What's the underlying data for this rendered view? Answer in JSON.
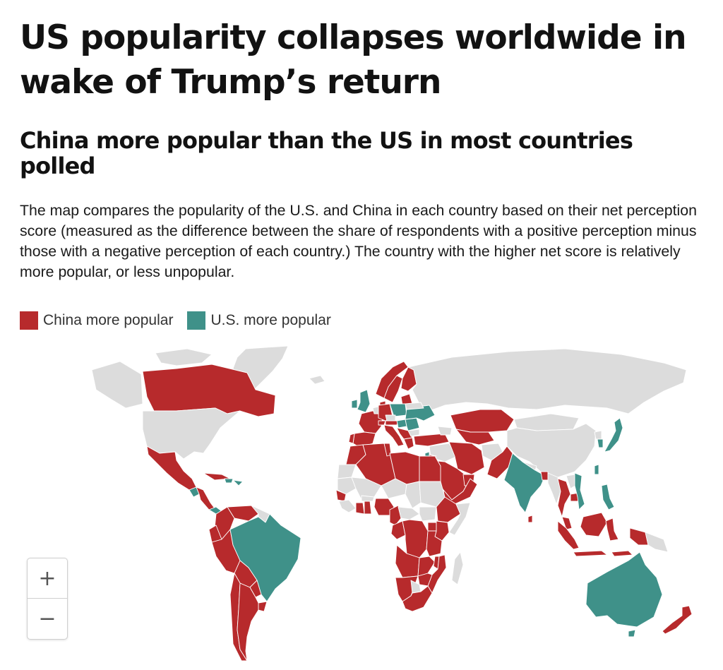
{
  "headline": "US popularity collapses worldwide in wake of Trump’s return",
  "subhead": "China more popular than the US in most countries polled",
  "description": "The map compares the popularity of the U.S. and China in each country based on their net perception score (measured as the difference between the share of respondents with a positive perception minus those with a negative perception of each country.) The country with the higher net score is relatively more popular, or less unpopular.",
  "legend": [
    {
      "label": "China more popular",
      "color": "#b72a2c"
    },
    {
      "label": "U.S. more popular",
      "color": "#3f9189"
    }
  ],
  "map": {
    "colors": {
      "china": "#b72a2c",
      "us": "#3f9189",
      "no_data": "#dcdcdc",
      "border": "#ffffff"
    },
    "china_more_popular": [
      "Canada",
      "Mexico",
      "Colombia",
      "Venezuela",
      "Peru",
      "Bolivia",
      "Chile",
      "Argentina",
      "Paraguay",
      "Uruguay",
      "Ecuador",
      "Cuba",
      "Spain",
      "Portugal",
      "France",
      "Germany",
      "Italy",
      "Switzerland",
      "Austria",
      "Norway",
      "Sweden",
      "Finland",
      "Greece",
      "Turkey",
      "Kazakhstan",
      "Iran",
      "Pakistan",
      "Saudi Arabia",
      "Egypt",
      "Libya",
      "Algeria",
      "Morocco",
      "Tunisia",
      "Nigeria",
      "Ghana",
      "Kenya",
      "Ethiopia",
      "DR Congo",
      "Angola",
      "Zambia",
      "Tanzania",
      "Mozambique",
      "South Africa",
      "Zimbabwe",
      "Bangladesh",
      "Thailand",
      "Malaysia",
      "Indonesia",
      "New Zealand"
    ],
    "us_more_popular": [
      "Brazil",
      "Australia",
      "India",
      "Japan",
      "South Korea",
      "Philippines",
      "Vietnam",
      "Poland",
      "Ukraine",
      "Hungary",
      "Romania",
      "United Kingdom",
      "Ireland",
      "Israel",
      "Guatemala",
      "Panama"
    ]
  },
  "zoom": {
    "in_label": "+",
    "out_label": "−"
  }
}
